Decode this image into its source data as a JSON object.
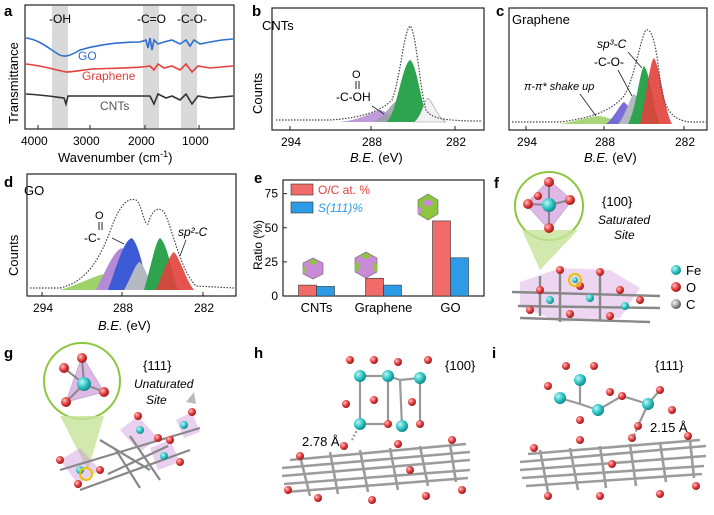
{
  "panels": {
    "a": {
      "letter": "a",
      "ylabel": "Transmittance",
      "xlabel": "Wavenumber (cm",
      "xlabel_sup": "-1",
      "xlabel_tail": ")",
      "ticks": [
        "4000",
        "3000",
        "2000",
        "1000"
      ],
      "bands": [
        "-OH",
        "-C=O",
        "-C-O-"
      ],
      "series": [
        {
          "name": "GO",
          "color": "#2f6fce"
        },
        {
          "name": "Graphene",
          "color": "#e2403c"
        },
        {
          "name": "CNTs",
          "color": "#333333"
        }
      ]
    },
    "b": {
      "letter": "b",
      "title": "CNTs",
      "ylabel": "Counts",
      "xlabel_italic": "B.E.",
      "xlabel_unit": " (eV)",
      "ticks": [
        "294",
        "288",
        "282"
      ],
      "annotation_top": "O",
      "annotation_bottom": "-C-OH"
    },
    "c": {
      "letter": "c",
      "title": "Graphene",
      "xlabel_italic": "B.E.",
      "xlabel_unit": " (eV)",
      "ticks": [
        "294",
        "288",
        "282"
      ],
      "annotations": [
        "sp³-C",
        "-C-O-",
        "π-π* shake up"
      ]
    },
    "d": {
      "letter": "d",
      "title": "GO",
      "ylabel": "Counts",
      "xlabel_italic": "B.E.",
      "xlabel_unit": " (eV)",
      "ticks": [
        "294",
        "288",
        "282"
      ],
      "annotation_top": "O",
      "annotation_bottom": "-C-",
      "annotation_sp2": "sp²-C"
    },
    "e": {
      "letter": "e",
      "ylabel": "Ratio (%)",
      "legend": [
        "O/C at. %",
        "S(111)%"
      ],
      "yticks": [
        "0",
        "25",
        "50",
        "75"
      ]
    },
    "f": {
      "letter": "f",
      "facet": "{100}",
      "site_line1": "Saturated",
      "site_line2": "Site",
      "legend": [
        "Fe",
        "O",
        "C"
      ]
    },
    "g": {
      "letter": "g",
      "facet": "{111}",
      "site_line1": "Unaturated",
      "site_line2": "Site"
    },
    "h": {
      "letter": "h",
      "facet": "{100}",
      "distance": "2.78 Å"
    },
    "i": {
      "letter": "i",
      "facet": "{111}",
      "distance": "2.15 Å"
    }
  },
  "colors": {
    "go": "#2f6fce",
    "graphene": "#e2403c",
    "cnts": "#333333",
    "oc_bar": "#f26b6b",
    "s111_bar": "#2d9be6",
    "fe": "#2ec4c4",
    "o": "#e23b3b",
    "c": "#9a9a9a",
    "polyhedron": "#c98ad6",
    "highlight": "#8cc63f"
  },
  "chart_data": {
    "type": "bar",
    "categories": [
      "CNTs",
      "Graphene",
      "GO"
    ],
    "series": [
      {
        "name": "O/C at. %",
        "values": [
          8,
          13,
          55
        ]
      },
      {
        "name": "S(111)%",
        "values": [
          7,
          8,
          28
        ]
      }
    ],
    "ylabel": "Ratio (%)",
    "ylim": [
      0,
      85
    ],
    "yticks": [
      0,
      25,
      50,
      75
    ]
  }
}
